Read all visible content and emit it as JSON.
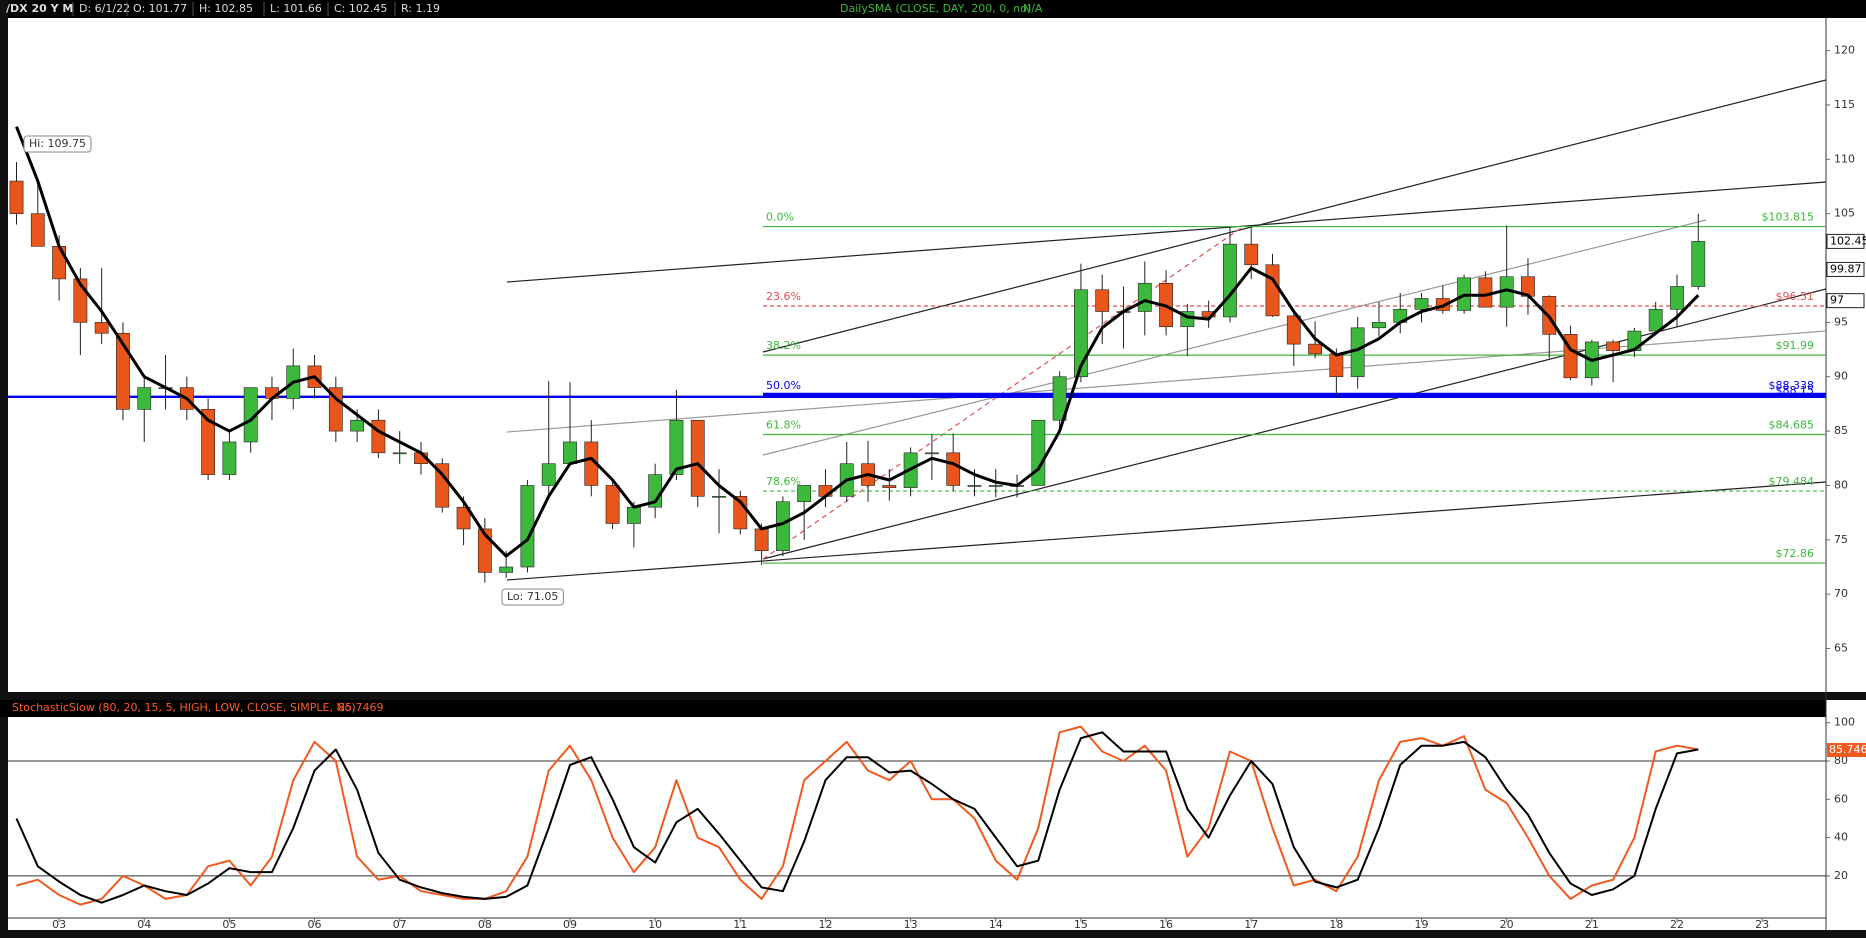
{
  "chart_data": [
    {
      "type": "candlestick",
      "title": "/DX 20 Y M",
      "header_fields": [
        "D: 6/1/22",
        "O: 101.77",
        "H: 102.85",
        "L: 101.66",
        "C: 102.45",
        "R: 1.19"
      ],
      "study_label": "DailySMA (CLOSE, DAY, 200, 0, no)",
      "study_value": "N/A",
      "up_color": "#3cb83c",
      "down_color": "#e8561b",
      "x": [
        2002.5,
        2002.75,
        2003,
        2003.25,
        2003.5,
        2003.75,
        2004,
        2004.25,
        2004.5,
        2004.75,
        2005,
        2005.25,
        2005.5,
        2005.75,
        2006,
        2006.25,
        2006.5,
        2006.75,
        2007,
        2007.25,
        2007.5,
        2007.75,
        2008,
        2008.25,
        2008.5,
        2008.75,
        2009,
        2009.25,
        2009.5,
        2009.75,
        2010,
        2010.25,
        2010.5,
        2010.75,
        2011,
        2011.25,
        2011.5,
        2011.75,
        2012,
        2012.25,
        2012.5,
        2012.75,
        2013,
        2013.25,
        2013.5,
        2013.75,
        2014,
        2014.25,
        2014.5,
        2014.75,
        2015,
        2015.25,
        2015.5,
        2015.75,
        2016,
        2016.25,
        2016.5,
        2016.75,
        2017,
        2017.25,
        2017.5,
        2017.75,
        2018,
        2018.25,
        2018.5,
        2018.75,
        2019,
        2019.25,
        2019.5,
        2019.75,
        2020,
        2020.25,
        2020.5,
        2020.75,
        2021,
        2021.25,
        2021.5,
        2021.75,
        2022,
        2022.25
      ],
      "ohlc": [
        [
          108,
          109.75,
          104,
          105
        ],
        [
          105,
          108,
          102,
          102
        ],
        [
          102,
          103,
          97,
          99
        ],
        [
          99,
          100,
          92,
          95
        ],
        [
          95,
          100,
          93,
          94
        ],
        [
          94,
          95,
          86,
          87
        ],
        [
          87,
          90,
          84,
          89
        ],
        [
          89,
          92,
          87,
          89
        ],
        [
          89,
          90,
          86,
          87
        ],
        [
          87,
          88,
          80.5,
          81
        ],
        [
          81,
          85,
          80.5,
          84
        ],
        [
          84,
          89,
          83,
          89
        ],
        [
          89,
          90,
          86,
          88
        ],
        [
          88,
          92.6,
          87,
          91
        ],
        [
          91,
          92,
          88,
          89
        ],
        [
          89,
          90,
          84,
          85
        ],
        [
          85,
          87,
          84,
          86
        ],
        [
          86,
          87,
          82.5,
          83
        ],
        [
          83,
          85,
          82,
          83
        ],
        [
          83,
          84,
          81,
          82
        ],
        [
          82,
          82.5,
          77.5,
          78
        ],
        [
          78,
          79,
          74.5,
          76
        ],
        [
          76,
          77,
          71.05,
          72
        ],
        [
          72,
          74,
          71.5,
          72.5
        ],
        [
          72.5,
          80.5,
          72,
          80
        ],
        [
          80,
          89.6,
          79,
          82
        ],
        [
          82,
          89.5,
          82,
          84
        ],
        [
          84,
          86,
          79,
          80
        ],
        [
          80,
          80.5,
          76,
          76.5
        ],
        [
          76.5,
          78.5,
          74.3,
          78
        ],
        [
          78,
          82,
          77,
          81
        ],
        [
          81,
          88.8,
          80.5,
          86
        ],
        [
          86,
          86,
          78,
          79
        ],
        [
          79,
          81.5,
          75.6,
          79
        ],
        [
          79,
          79.5,
          75.5,
          76
        ],
        [
          76,
          76.5,
          72.7,
          74
        ],
        [
          74,
          79,
          73.5,
          78.5
        ],
        [
          78.5,
          80,
          75,
          80
        ],
        [
          80,
          81.5,
          78,
          79
        ],
        [
          79,
          84,
          78.5,
          82
        ],
        [
          82,
          84.1,
          78.5,
          80
        ],
        [
          80,
          81.5,
          78.6,
          79.8
        ],
        [
          79.8,
          83.5,
          79,
          83
        ],
        [
          83,
          84.7,
          80.5,
          83
        ],
        [
          83,
          84.8,
          79.5,
          80
        ],
        [
          80,
          81.5,
          79,
          80
        ],
        [
          80,
          81.5,
          78.9,
          80
        ],
        [
          80,
          81,
          78.9,
          80
        ],
        [
          80,
          86,
          80,
          86
        ],
        [
          86,
          90.5,
          85,
          90
        ],
        [
          90,
          100.4,
          89.5,
          98
        ],
        [
          98,
          99.4,
          93,
          96
        ],
        [
          96,
          98.3,
          92.6,
          96
        ],
        [
          96,
          100.6,
          93.8,
          98.6
        ],
        [
          98.6,
          99.8,
          93.8,
          94.6
        ],
        [
          94.6,
          96.7,
          91.9,
          96
        ],
        [
          96,
          97,
          94.5,
          95.5
        ],
        [
          95.5,
          103.8,
          95,
          102.2
        ],
        [
          102.2,
          103.8,
          99,
          100.3
        ],
        [
          100.3,
          101.3,
          95.5,
          95.6
        ],
        [
          95.6,
          96,
          91,
          93
        ],
        [
          93,
          95.1,
          91.7,
          92.1
        ],
        [
          92.1,
          92.6,
          88.25,
          90
        ],
        [
          90,
          95.5,
          88.9,
          94.5
        ],
        [
          94.5,
          96.9,
          93.7,
          95
        ],
        [
          95,
          97.7,
          94,
          96.2
        ],
        [
          96.2,
          97.7,
          95,
          97.2
        ],
        [
          97.2,
          98.4,
          95.8,
          96.1
        ],
        [
          96.1,
          99.4,
          95.8,
          99.1
        ],
        [
          99.1,
          99.7,
          96.4,
          96.4
        ],
        [
          96.4,
          103.9,
          94.6,
          99.2
        ],
        [
          99.2,
          100.9,
          95.7,
          97.4
        ],
        [
          97.4,
          97.5,
          91.7,
          93.9
        ],
        [
          93.9,
          94.7,
          89.7,
          89.9
        ],
        [
          89.9,
          93.4,
          89.2,
          93.2
        ],
        [
          93.2,
          93.4,
          89.5,
          92.4
        ],
        [
          92.4,
          94.5,
          91.8,
          94.2
        ],
        [
          94.2,
          96.9,
          93.8,
          96.2
        ],
        [
          96.2,
          99.4,
          94.6,
          98.3
        ],
        [
          98.3,
          105,
          98,
          102.45
        ]
      ],
      "moving_average": {
        "color": "#000000",
        "values": [
          113,
          108,
          102,
          98.5,
          96,
          93,
          90,
          89,
          88,
          86,
          85,
          86,
          88,
          89.5,
          90,
          88,
          86.5,
          85,
          84,
          83,
          81,
          78.5,
          75.5,
          73.5,
          75,
          79,
          82,
          82.5,
          80.5,
          78,
          78.5,
          81.5,
          82,
          80,
          78.5,
          76,
          76.5,
          77.5,
          79,
          80.5,
          81,
          80.5,
          81.5,
          82.5,
          82,
          81,
          80.3,
          80,
          81.5,
          85,
          91,
          94.5,
          96,
          97,
          96.5,
          95.5,
          95.3,
          97.5,
          100,
          99,
          96,
          93.5,
          92,
          92.5,
          93.5,
          95,
          96,
          96.5,
          97.5,
          97.5,
          98,
          97.5,
          95.5,
          92.5,
          91.5,
          92,
          92.5,
          94,
          95.5,
          97.5
        ]
      },
      "annotations": [
        {
          "text": "Hi: 109.75"
        },
        {
          "text": "Lo: 71.05"
        }
      ],
      "fib_levels": [
        {
          "pct": "0.0%",
          "value": 103.815,
          "label": "$103.815",
          "color": "#3cb83c",
          "dashed": false
        },
        {
          "pct": "23.6%",
          "value": 96.51,
          "label": "$96.51",
          "color": "#e05050",
          "dashed": true
        },
        {
          "pct": "38.2%",
          "value": 91.99,
          "label": "$91.99",
          "color": "#3cb83c",
          "dashed": false
        },
        {
          "pct": "50.0%",
          "value": 88.338,
          "label": "$88.338",
          "color": "#0000ee",
          "dashed": false
        },
        {
          "pct": "61.8%",
          "value": 84.685,
          "label": "$84.685",
          "color": "#3cb83c",
          "dashed": false
        },
        {
          "pct": "78.6%",
          "value": 79.484,
          "label": "$79.484",
          "color": "#3cb83c",
          "dashed": true
        },
        {
          "value": 72.86,
          "label": "$72.86",
          "color": "#3cb83c",
          "dashed": false
        }
      ],
      "support_line": {
        "value": 88.15,
        "label": "$88.15",
        "color": "#0000ee"
      },
      "price_boxes": [
        102.45,
        99.87,
        97
      ],
      "xlim": [
        2002.4,
        2023.75
      ],
      "xticks": [
        {
          "value": 2003,
          "label": "03"
        },
        {
          "value": 2004,
          "label": "04"
        },
        {
          "value": 2005,
          "label": "05"
        },
        {
          "value": 2006,
          "label": "06"
        },
        {
          "value": 2007,
          "label": "07"
        },
        {
          "value": 2008,
          "label": "08"
        },
        {
          "value": 2009,
          "label": "09"
        },
        {
          "value": 2010,
          "label": "10"
        },
        {
          "value": 2011,
          "label": "11"
        },
        {
          "value": 2012,
          "label": "12"
        },
        {
          "value": 2013,
          "label": "13"
        },
        {
          "value": 2014,
          "label": "14"
        },
        {
          "value": 2015,
          "label": "15"
        },
        {
          "value": 2016,
          "label": "16"
        },
        {
          "value": 2017,
          "label": "17"
        },
        {
          "value": 2018,
          "label": "18"
        },
        {
          "value": 2019,
          "label": "19"
        },
        {
          "value": 2020,
          "label": "20"
        },
        {
          "value": 2021,
          "label": "21"
        },
        {
          "value": 2022,
          "label": "22"
        },
        {
          "value": 2023,
          "label": "23"
        }
      ],
      "ylim": [
        61,
        123
      ],
      "yticks": [
        120,
        115,
        110,
        105,
        100,
        95,
        90,
        85,
        80,
        75,
        70,
        65
      ],
      "grid": false
    },
    {
      "type": "line",
      "title": "StochasticSlow (80, 20, 15, 5, HIGH, LOW, CLOSE, SIMPLE, No)",
      "title_value": "85.7469",
      "last_value": 85.7469,
      "series": [
        {
          "color": "#f05a1e",
          "values": [
            15,
            18,
            10,
            5,
            8,
            20,
            15,
            8,
            10,
            25,
            28,
            15,
            30,
            70,
            90,
            80,
            30,
            18,
            20,
            12,
            10,
            8,
            8,
            12,
            30,
            75,
            88,
            70,
            40,
            22,
            35,
            70,
            40,
            35,
            18,
            8,
            25,
            70,
            80,
            90,
            75,
            70,
            80,
            60,
            60,
            50,
            28,
            18,
            45,
            95,
            98,
            85,
            80,
            88,
            75,
            30,
            45,
            85,
            80,
            45,
            15,
            18,
            12,
            30,
            70,
            90,
            92,
            88,
            93,
            65,
            58,
            40,
            20,
            8,
            15,
            18,
            40,
            85,
            88,
            86
          ]
        },
        {
          "color": "#000000",
          "values": [
            50,
            25,
            17,
            10,
            6,
            10,
            15,
            12,
            10,
            16,
            24,
            22,
            22,
            45,
            75,
            86,
            65,
            32,
            18,
            14,
            11,
            9,
            8,
            9,
            15,
            45,
            78,
            82,
            60,
            35,
            27,
            48,
            55,
            42,
            28,
            14,
            12,
            38,
            70,
            82,
            82,
            74,
            75,
            68,
            60,
            55,
            40,
            25,
            28,
            65,
            92,
            95,
            85,
            85,
            85,
            55,
            40,
            62,
            80,
            68,
            35,
            17,
            14,
            18,
            45,
            78,
            88,
            88,
            90,
            82,
            65,
            52,
            32,
            16,
            10,
            13,
            20,
            55,
            84,
            86
          ]
        }
      ],
      "ref_lines": [
        80,
        20
      ],
      "ylim": [
        -2,
        103
      ],
      "yticks": [
        100,
        80,
        60,
        40,
        20
      ]
    }
  ]
}
